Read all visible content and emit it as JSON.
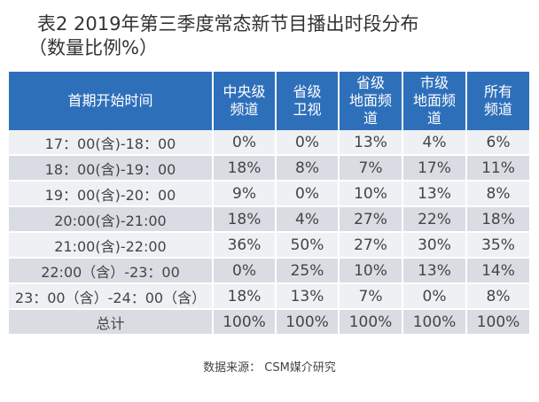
{
  "title": {
    "line1": "表2  2019年第三季度常态新节目播出时段分布",
    "line2": "（数量比例%）"
  },
  "table": {
    "headers": [
      [
        "首期开始时间"
      ],
      [
        "中央级",
        "频道"
      ],
      [
        "省级",
        "卫视"
      ],
      [
        "省级",
        "地面频",
        "道"
      ],
      [
        "市级",
        "地面频",
        "道"
      ],
      [
        "所有",
        "频道"
      ]
    ],
    "rows": [
      [
        "17：00(含)-18：00",
        "0%",
        "0%",
        "13%",
        "4%",
        "6%"
      ],
      [
        "18：00(含)-19：00",
        "18%",
        "8%",
        "7%",
        "17%",
        "11%"
      ],
      [
        "19：00(含)-20：00",
        "9%",
        "0%",
        "10%",
        "13%",
        "8%"
      ],
      [
        "20:00(含)-21:00",
        "18%",
        "4%",
        "27%",
        "22%",
        "18%"
      ],
      [
        "21:00(含)-22:00",
        "36%",
        "50%",
        "27%",
        "30%",
        "35%"
      ],
      [
        "22:00（含）-23：00",
        "0%",
        "25%",
        "10%",
        "13%",
        "14%"
      ],
      [
        "23：00（含）-24：00（含）",
        "18%",
        "13%",
        "7%",
        "0%",
        "8%"
      ],
      [
        "总计",
        "100%",
        "100%",
        "100%",
        "100%",
        "100%"
      ]
    ]
  },
  "source": "数据来源：  CSM媒介研究",
  "colors": {
    "header_bg": "#2e6fba",
    "row_light": "#eef0f3",
    "row_dark": "#d9dde3"
  },
  "chart_data": {
    "type": "table",
    "title": "表2  2019年第三季度常态新节目播出时段分布（数量比例%）",
    "columns": [
      "首期开始时间",
      "中央级频道",
      "省级卫视",
      "省级地面频道",
      "市级地面频道",
      "所有频道"
    ],
    "rows": [
      [
        "17：00(含)-18：00",
        0,
        0,
        13,
        4,
        6
      ],
      [
        "18：00(含)-19：00",
        18,
        8,
        7,
        17,
        11
      ],
      [
        "19：00(含)-20：00",
        9,
        0,
        10,
        13,
        8
      ],
      [
        "20:00(含)-21:00",
        18,
        4,
        27,
        22,
        18
      ],
      [
        "21:00(含)-22:00",
        36,
        50,
        27,
        30,
        35
      ],
      [
        "22:00（含）-23：00",
        0,
        25,
        10,
        13,
        14
      ],
      [
        "23：00（含）-24：00（含）",
        18,
        13,
        7,
        0,
        8
      ],
      [
        "总计",
        100,
        100,
        100,
        100,
        100
      ]
    ]
  }
}
